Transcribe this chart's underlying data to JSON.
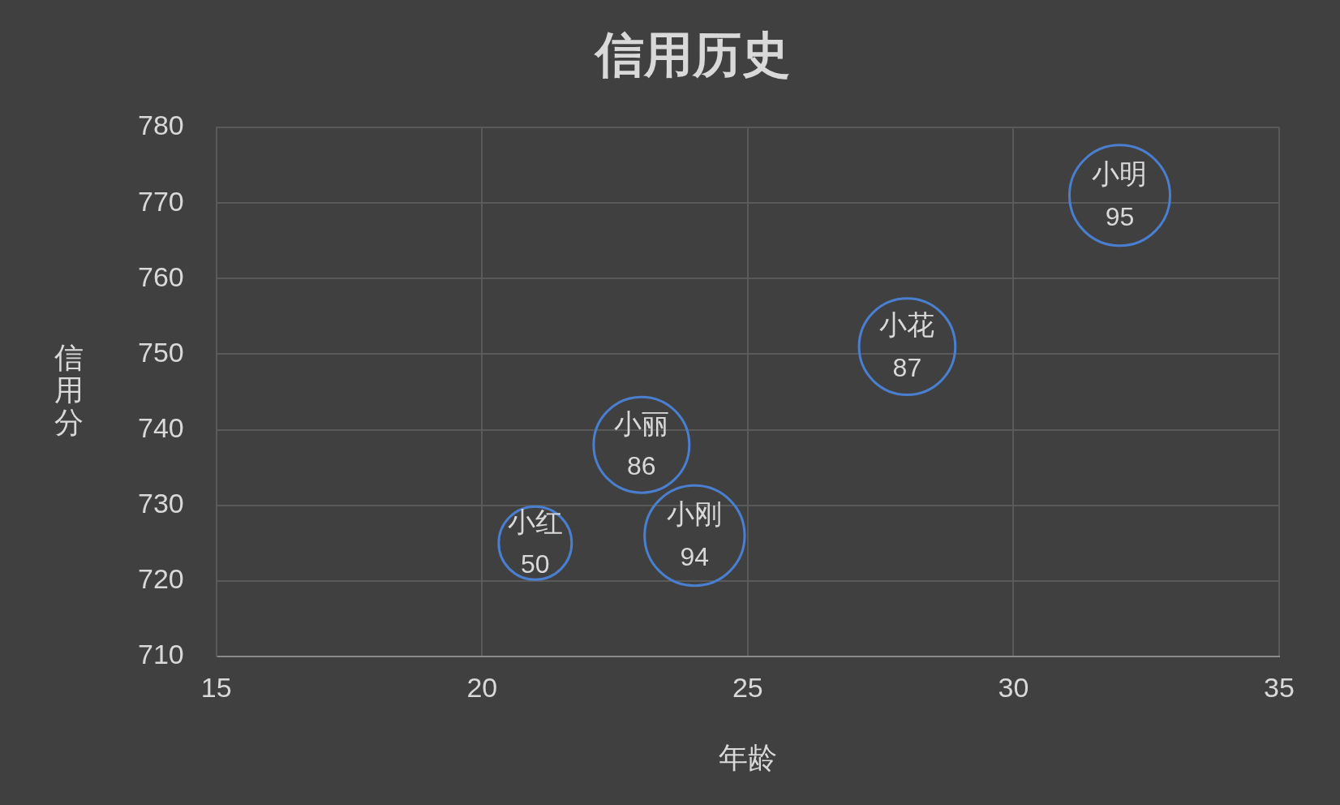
{
  "chart_data": {
    "type": "bubble",
    "title": "信用历史",
    "xlabel": "年龄",
    "ylabel": "信用分",
    "series": [
      {
        "color": "#4a7fd0",
        "x": [
          21,
          23,
          24,
          28,
          32
        ],
        "values": [
          725,
          738,
          726,
          751,
          771
        ],
        "sizes": [
          50,
          86,
          94,
          87,
          95
        ],
        "value_labels": [
          "50",
          "86",
          "94",
          "87",
          "95"
        ]
      }
    ],
    "annotations": [
      {
        "text": "小红",
        "x": 21,
        "y": 725
      },
      {
        "text": "小丽",
        "x": 23,
        "y": 738
      },
      {
        "text": "小刚",
        "x": 24,
        "y": 726
      },
      {
        "text": "小花",
        "x": 28,
        "y": 751
      },
      {
        "text": "小明",
        "x": 32,
        "y": 771
      }
    ],
    "xlim": [
      15,
      35
    ],
    "xticks": [
      15,
      20,
      25,
      30,
      35
    ],
    "ylim": [
      710,
      780
    ],
    "yticks": [
      710,
      720,
      730,
      740,
      750,
      760,
      770,
      780
    ],
    "grid": true,
    "legend": false
  }
}
